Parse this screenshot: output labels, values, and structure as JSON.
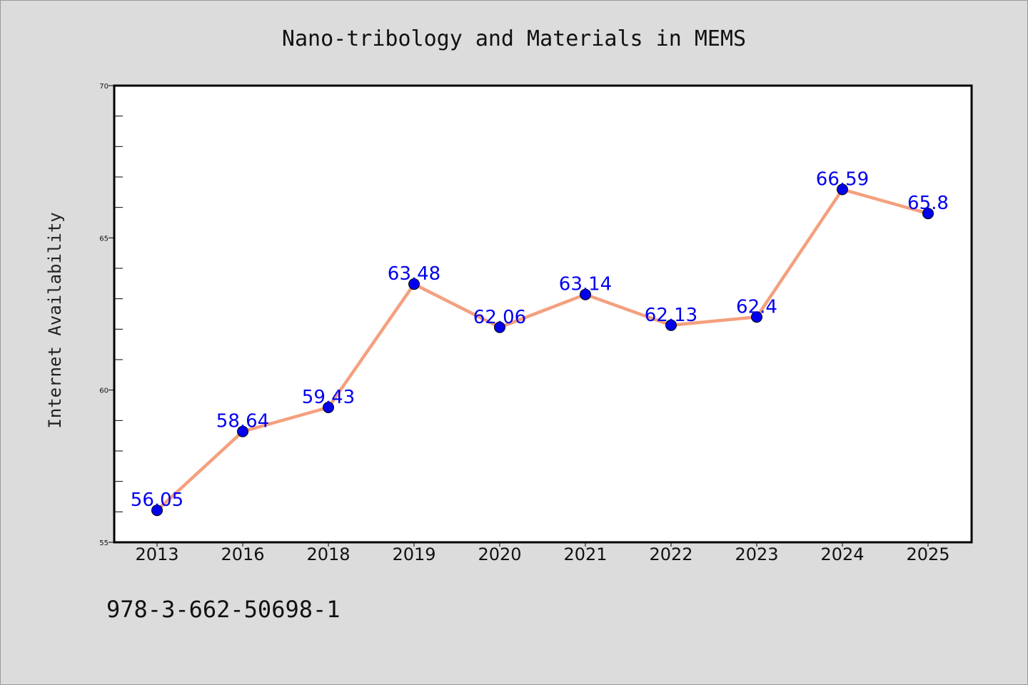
{
  "footer_code": "978-3-662-50698-1",
  "colors": {
    "background": "#dcdcdc",
    "plot_background": "#ffffff",
    "line": "#f4a07e",
    "marker": "#0000ee",
    "data_label": "#0000ee"
  },
  "chart_data": {
    "type": "line",
    "title": "Nano-tribology and Materials in MEMS",
    "xlabel": "",
    "ylabel": "Internet Availability",
    "categories": [
      "2013",
      "2016",
      "2018",
      "2019",
      "2020",
      "2021",
      "2022",
      "2023",
      "2024",
      "2025"
    ],
    "series": [
      {
        "values": [
          56.05,
          58.64,
          59.43,
          63.48,
          62.06,
          63.14,
          62.13,
          62.4,
          66.59,
          65.8
        ],
        "labels": [
          "56.05",
          "58.64",
          "59.43",
          "63.48",
          "62.06",
          "63.14",
          "62.13",
          "62.4",
          "66.59",
          "65.8"
        ]
      }
    ],
    "ylim": [
      55,
      70
    ],
    "yticks": [
      "55",
      "60",
      "65",
      "70"
    ],
    "grid": false,
    "legend": "none"
  }
}
